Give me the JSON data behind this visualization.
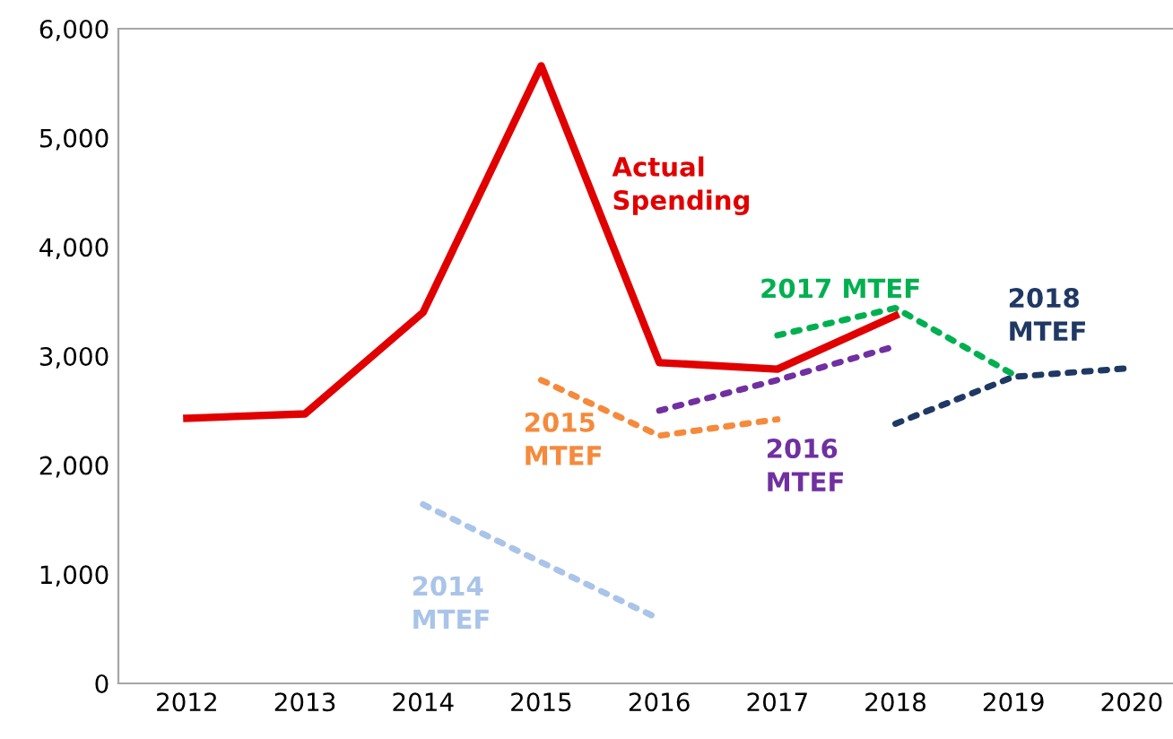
{
  "chart_data": {
    "type": "line",
    "categories": [
      "2012",
      "2013",
      "2014",
      "2015",
      "2016",
      "2017",
      "2018",
      "2019",
      "2020"
    ],
    "series": [
      {
        "name": "Actual Spending",
        "color": "#e00000",
        "line_style": "solid",
        "values": [
          2430,
          2470,
          3400,
          5660,
          2940,
          2880,
          3370,
          null,
          null
        ]
      },
      {
        "name": "2014 MTEF",
        "color": "#a9c4e8",
        "line_style": "dotted",
        "values": [
          null,
          null,
          1640,
          1110,
          590,
          null,
          null,
          null,
          null
        ]
      },
      {
        "name": "2015 MTEF",
        "color": "#f58a3c",
        "line_style": "dotted",
        "values": [
          null,
          null,
          null,
          2780,
          2270,
          2420,
          null,
          null,
          null
        ]
      },
      {
        "name": "2016 MTEF",
        "color": "#7030a0",
        "line_style": "dotted",
        "values": [
          null,
          null,
          null,
          null,
          2500,
          2780,
          3090,
          null,
          null
        ]
      },
      {
        "name": "2017 MTEF",
        "color": "#00b050",
        "line_style": "dotted",
        "values": [
          null,
          null,
          null,
          null,
          null,
          3190,
          3440,
          2830,
          null
        ]
      },
      {
        "name": "2018 MTEF",
        "color": "#1f3864",
        "line_style": "dotted",
        "values": [
          null,
          null,
          null,
          null,
          null,
          null,
          2380,
          2810,
          2890
        ]
      }
    ],
    "ylim": [
      0,
      6000
    ],
    "yticks": [
      0,
      {
        "value": 1000,
        "label": "1,000"
      },
      {
        "value": 2000,
        "label": "2,000"
      },
      {
        "value": 3000,
        "label": "3,000"
      },
      {
        "value": 4000,
        "label": "4,000"
      },
      {
        "value": 5000,
        "label": "5,000"
      },
      {
        "value": 6000,
        "label": "6,000"
      }
    ],
    "grid": false,
    "legend": false,
    "marker": "none"
  }
}
